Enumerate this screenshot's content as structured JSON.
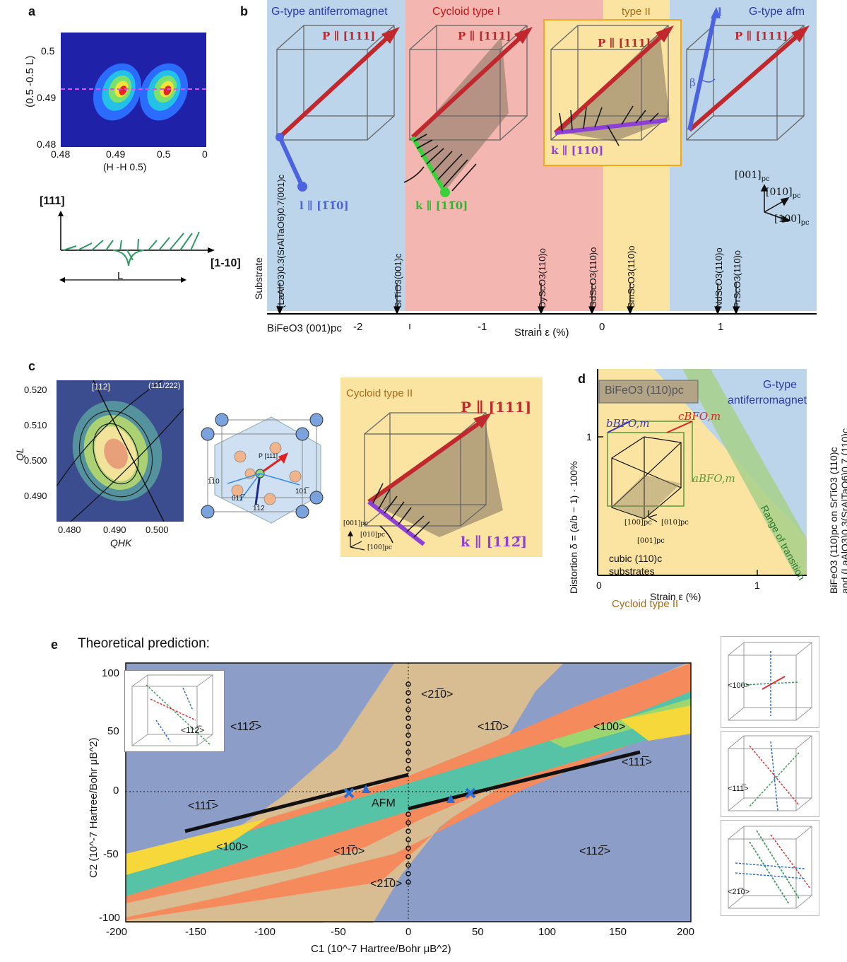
{
  "panel_labels": {
    "a": "a",
    "b": "b",
    "c": "c",
    "d": "d",
    "e": "e"
  },
  "panel_a": {
    "ylabel": "(0.5 -0.5 L)",
    "xlabel": "(H -H 0.5)",
    "yticks": [
      "0.5",
      "0.49",
      "0.48"
    ],
    "xticks": [
      "0.48",
      "0.49",
      "0.5",
      "0.5"
    ],
    "cycloid_axis_y": "[111]",
    "cycloid_axis_x": "[1-10]",
    "period_label": "L"
  },
  "panel_b": {
    "regions": {
      "g_type_left": "G-type antiferromagnet",
      "cycloid_1": "Cycloid type I",
      "type_2": "type II",
      "g_type_right": "G-type afm"
    },
    "polarization_label": "P ∥ [111]",
    "l_vector_label": "l ∥ [1̅1̅0]",
    "k_type1_label": "k ∥ [11̅0]",
    "k_type2_label": "k ∥ [110]",
    "l_label": "l",
    "beta_label": "β",
    "axes": [
      "[001]",
      "[010]",
      "[100]"
    ],
    "axis_subscript": "pc",
    "substrate_axis_label": "Substrate",
    "substrates": [
      "(LaAlO3)0.3(SrAlTaO6)0.7(001)c",
      "SrTiO3(001)c",
      "DyScO3(110)o",
      "GdScO3(110)o",
      "SmScO3(110)o",
      "NdScO3(110)o",
      "PrScO3(110)o"
    ],
    "bfo_label": "BiFeO3 (001)pc",
    "strain_ticks": [
      "-2",
      "-1",
      "0",
      "1"
    ],
    "strain_label": "Strain ε (%)"
  },
  "panel_c": {
    "ylabel": "QL",
    "xlabel": "QHK",
    "yticks": [
      "0.520",
      "0.510",
      "0.500",
      "0.490"
    ],
    "xticks": [
      "0.480",
      "0.490",
      "0.500"
    ],
    "dir_112": "[112]",
    "dir_111_222": "(111/222)",
    "crystal_labels": [
      "P [111]",
      "1̅10",
      "011̅",
      "1̅12",
      "101̅"
    ],
    "cycloid_title": "Cycloid type II",
    "p_label": "P ∥ [111]",
    "k_label": "k ∥ [112̅]",
    "axes": [
      "[001]pc",
      "[010]pc",
      "[100]pc"
    ]
  },
  "panel_d": {
    "inset_title": "BiFeO3 (110)pc",
    "g_type": "G-type antiferromagnet",
    "g_type_line1": "G-type",
    "g_type_line2": "antiferromagnet",
    "b_label": "bBFO,m",
    "c_label": "cBFO,m",
    "a_label": "aBFO,m",
    "range_label": "Range of transition",
    "cycloid_label": "Cycloid type II",
    "substrate_line1": "cubic (110)c",
    "substrate_line2": "substrates",
    "axes": [
      "[100]pc",
      "[010]pc",
      "[001]pc"
    ],
    "ylabel": "Distortion δ = (a/b − 1) · 100%",
    "ytick": "1",
    "xticks": [
      "0",
      "1"
    ],
    "xlabel": "Strain ε (%)",
    "right_title_1": "BiFeO3 (110)pc on SrTiO3 (110)c",
    "right_title_2": "and (LaAlO3)0.3(SrAlTaO6)0.7 (110)c"
  },
  "panel_e": {
    "title": "Theoretical prediction:",
    "ylabel": "C2 (10^-7 Hartree/Bohr μB^2)",
    "xlabel": "C1 (10^-7 Hartree/Bohr μB^2)",
    "xticks": [
      "-200",
      "-150",
      "-100",
      "-50",
      "0",
      "50",
      "100",
      "150",
      "200"
    ],
    "yticks": [
      "100",
      "50",
      "0",
      "-50",
      "-100"
    ],
    "region_labels": [
      "<21̅0>",
      "<112̅>",
      "<11̅0>",
      "<100>",
      "<111̅>",
      "AFM",
      "<111̅>",
      "<100>",
      "<11̅0>",
      "<112̅>",
      "<21̅0>"
    ],
    "inset_label": "<112̅>",
    "side_insets": [
      "<100>",
      "<111̅>",
      "<21̅0>"
    ],
    "colors": {
      "blue": "#8c9ec8",
      "tan": "#d9bd92",
      "orange": "#f58a5c",
      "green": "#9bd66e",
      "teal": "#56c3a6",
      "yellow": "#f6d83a"
    }
  }
}
